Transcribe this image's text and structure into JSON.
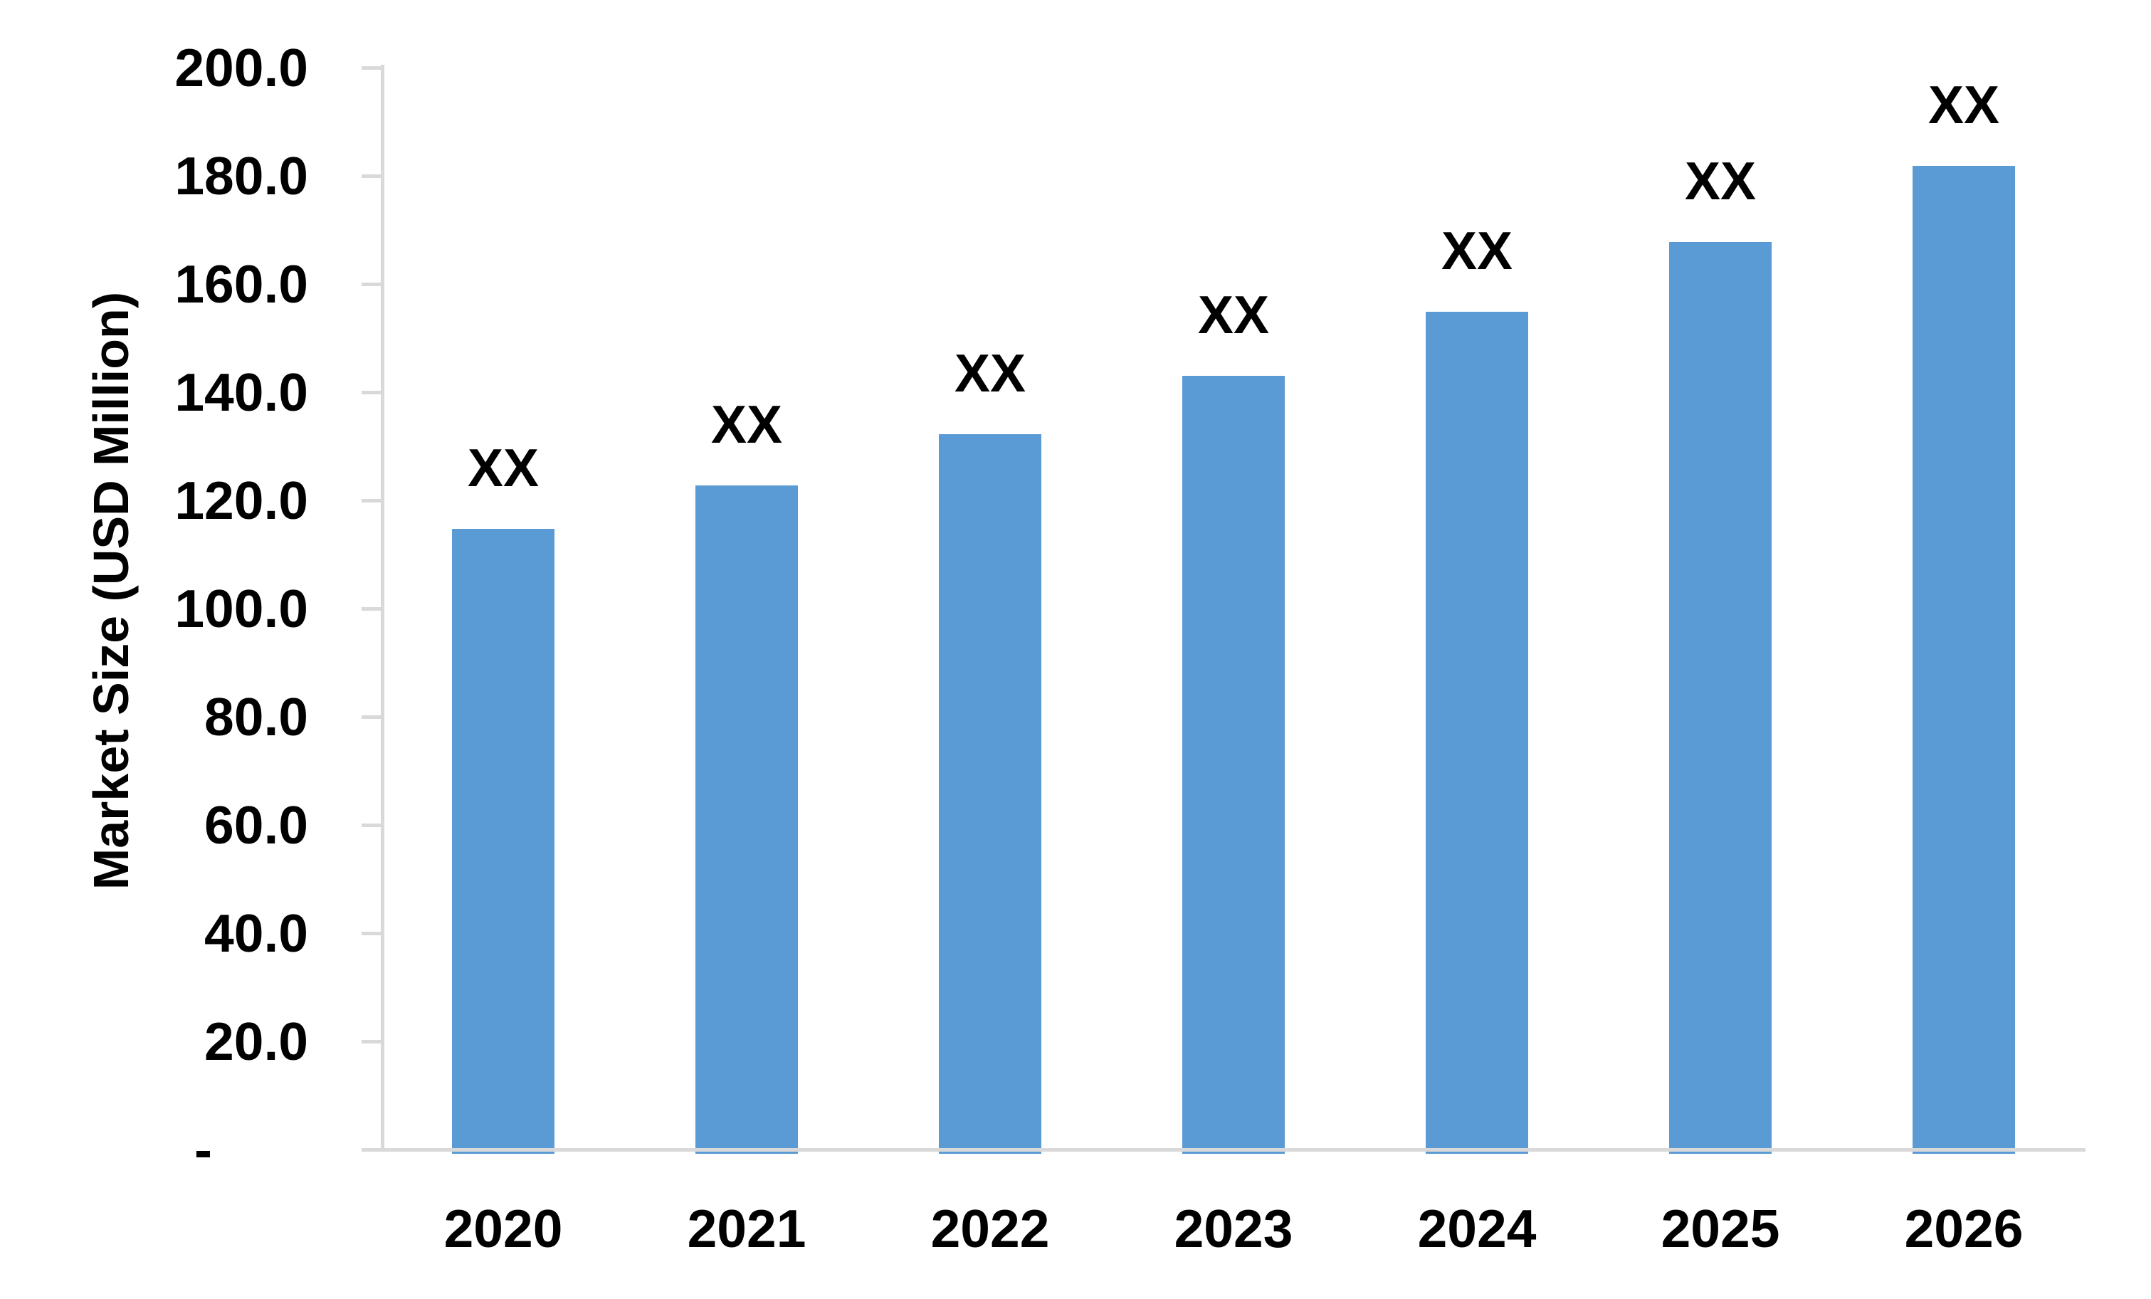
{
  "chart_data": {
    "type": "bar",
    "title": "",
    "xlabel": "",
    "ylabel": "Market Size (USD Million)",
    "categories": [
      "2020",
      "2021",
      "2022",
      "2023",
      "2024",
      "2025",
      "2026"
    ],
    "series": [
      {
        "name": "Market Size",
        "values": [
          114.7,
          122.8,
          132.3,
          143.0,
          154.9,
          167.8,
          181.8
        ],
        "data_labels": [
          "XX",
          "XX",
          "XX",
          "XX",
          "XX",
          "XX",
          "XX"
        ]
      }
    ],
    "ylim": [
      0,
      200
    ],
    "ytick_step": 20,
    "ytick_labels": [
      "200.0",
      "180.0",
      "160.0",
      "140.0",
      "120.0",
      "100.0",
      "80.0",
      "60.0",
      "40.0",
      "20.0",
      "-"
    ],
    "grid": false,
    "legend_position": "none",
    "colors": {
      "bar": "#5B9BD5",
      "axis_line": "#D9D9D9",
      "text": "#000000",
      "background": "#FFFFFF"
    }
  }
}
